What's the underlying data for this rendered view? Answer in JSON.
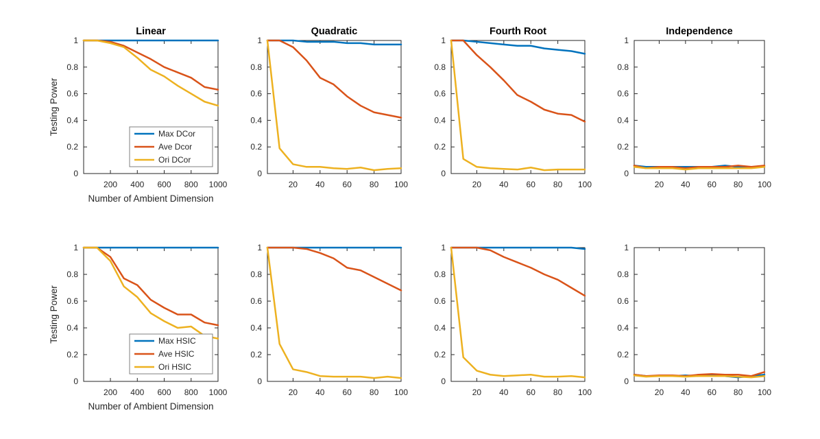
{
  "figure": {
    "background": "#ffffff",
    "axis_color": "#262626",
    "legend_border_color": "#7f7f7f",
    "ylabel": "Testing Power",
    "xlabel": "Number of Ambient Dimension"
  },
  "palette": {
    "blue": "#0072BD",
    "orange": "#D95319",
    "yellow": "#EDB120"
  },
  "chart_data": [
    {
      "type": "line",
      "title": "Linear",
      "row": 0,
      "col": 0,
      "xlabel": "Number of Ambient Dimension",
      "ylabel": "Testing Power",
      "x": [
        1,
        100,
        200,
        300,
        400,
        500,
        600,
        700,
        800,
        900,
        1000
      ],
      "xlim": [
        1,
        1000
      ],
      "x_ticks": [
        200,
        400,
        600,
        800,
        1000
      ],
      "ylim": [
        0,
        1
      ],
      "y_ticks": [
        0,
        0.2,
        0.4,
        0.6,
        0.8,
        1
      ],
      "grid": false,
      "legend": true,
      "legend_location": "inside-lower-right",
      "series": [
        {
          "name": "Max DCor",
          "color": "blue",
          "values": [
            1,
            1,
            1,
            1,
            1,
            1,
            1,
            1,
            1,
            1,
            1
          ]
        },
        {
          "name": "Ave Dcor",
          "color": "orange",
          "values": [
            1,
            1,
            0.99,
            0.96,
            0.91,
            0.86,
            0.8,
            0.76,
            0.72,
            0.65,
            0.63
          ]
        },
        {
          "name": "Ori DCor",
          "color": "yellow",
          "values": [
            1,
            1,
            0.98,
            0.95,
            0.87,
            0.78,
            0.73,
            0.66,
            0.6,
            0.54,
            0.51
          ]
        }
      ]
    },
    {
      "type": "line",
      "title": "Quadratic",
      "row": 0,
      "col": 1,
      "x": [
        1,
        10,
        20,
        30,
        40,
        50,
        60,
        70,
        80,
        90,
        100
      ],
      "xlim": [
        1,
        100
      ],
      "x_ticks": [
        20,
        40,
        60,
        80,
        100
      ],
      "ylim": [
        0,
        1
      ],
      "y_ticks": [
        0,
        0.2,
        0.4,
        0.6,
        0.8,
        1
      ],
      "grid": false,
      "legend": false,
      "series": [
        {
          "name": "Max DCor",
          "color": "blue",
          "values": [
            1,
            1,
            1,
            0.99,
            0.99,
            0.99,
            0.98,
            0.98,
            0.97,
            0.97,
            0.97
          ]
        },
        {
          "name": "Ave Dcor",
          "color": "orange",
          "values": [
            1,
            1,
            0.95,
            0.85,
            0.72,
            0.67,
            0.58,
            0.51,
            0.46,
            0.44,
            0.42
          ]
        },
        {
          "name": "Ori DCor",
          "color": "yellow",
          "values": [
            1,
            0.19,
            0.07,
            0.05,
            0.05,
            0.04,
            0.035,
            0.045,
            0.025,
            0.035,
            0.04
          ]
        }
      ]
    },
    {
      "type": "line",
      "title": "Fourth Root",
      "row": 0,
      "col": 2,
      "x": [
        1,
        10,
        20,
        30,
        40,
        50,
        60,
        70,
        80,
        90,
        100
      ],
      "xlim": [
        1,
        100
      ],
      "x_ticks": [
        20,
        40,
        60,
        80,
        100
      ],
      "ylim": [
        0,
        1
      ],
      "y_ticks": [
        0,
        0.2,
        0.4,
        0.6,
        0.8,
        1
      ],
      "grid": false,
      "legend": false,
      "series": [
        {
          "name": "Max DCor",
          "color": "blue",
          "values": [
            1,
            1,
            0.99,
            0.98,
            0.97,
            0.96,
            0.96,
            0.94,
            0.93,
            0.92,
            0.9
          ]
        },
        {
          "name": "Ave Dcor",
          "color": "orange",
          "values": [
            1,
            1,
            0.89,
            0.8,
            0.7,
            0.59,
            0.54,
            0.48,
            0.45,
            0.44,
            0.39
          ]
        },
        {
          "name": "Ori DCor",
          "color": "yellow",
          "values": [
            1,
            0.11,
            0.05,
            0.04,
            0.035,
            0.03,
            0.045,
            0.025,
            0.03,
            0.03,
            0.03
          ]
        }
      ]
    },
    {
      "type": "line",
      "title": "Independence",
      "row": 0,
      "col": 3,
      "x": [
        1,
        10,
        20,
        30,
        40,
        50,
        60,
        70,
        80,
        90,
        100
      ],
      "xlim": [
        1,
        100
      ],
      "x_ticks": [
        20,
        40,
        60,
        80,
        100
      ],
      "ylim": [
        0,
        1
      ],
      "y_ticks": [
        0,
        0.2,
        0.4,
        0.6,
        0.8,
        1
      ],
      "grid": false,
      "legend": false,
      "series": [
        {
          "name": "Max DCor",
          "color": "blue",
          "values": [
            0.06,
            0.05,
            0.05,
            0.05,
            0.05,
            0.05,
            0.05,
            0.06,
            0.05,
            0.05,
            0.05
          ]
        },
        {
          "name": "Ave Dcor",
          "color": "orange",
          "values": [
            0.06,
            0.04,
            0.05,
            0.05,
            0.04,
            0.05,
            0.05,
            0.05,
            0.06,
            0.05,
            0.06
          ]
        },
        {
          "name": "Ori DCor",
          "color": "yellow",
          "values": [
            0.05,
            0.04,
            0.04,
            0.04,
            0.03,
            0.04,
            0.04,
            0.04,
            0.04,
            0.04,
            0.05
          ]
        }
      ]
    },
    {
      "type": "line",
      "title": "",
      "row": 1,
      "col": 0,
      "xlabel": "Number of Ambient Dimension",
      "ylabel": "Testing Power",
      "x": [
        1,
        100,
        200,
        300,
        400,
        500,
        600,
        700,
        800,
        900,
        1000
      ],
      "xlim": [
        1,
        1000
      ],
      "x_ticks": [
        200,
        400,
        600,
        800,
        1000
      ],
      "ylim": [
        0,
        1
      ],
      "y_ticks": [
        0,
        0.2,
        0.4,
        0.6,
        0.8,
        1
      ],
      "grid": false,
      "legend": true,
      "legend_location": "inside-lower-right",
      "series": [
        {
          "name": "Max HSIC",
          "color": "blue",
          "values": [
            1,
            1,
            1,
            1,
            1,
            1,
            1,
            1,
            1,
            1,
            1
          ]
        },
        {
          "name": "Ave HSIC",
          "color": "orange",
          "values": [
            1,
            1,
            0.93,
            0.77,
            0.72,
            0.61,
            0.55,
            0.5,
            0.5,
            0.44,
            0.42
          ]
        },
        {
          "name": "Ori HSIC",
          "color": "yellow",
          "values": [
            1,
            1,
            0.9,
            0.71,
            0.63,
            0.51,
            0.45,
            0.4,
            0.41,
            0.34,
            0.32
          ]
        }
      ]
    },
    {
      "type": "line",
      "title": "",
      "row": 1,
      "col": 1,
      "x": [
        1,
        10,
        20,
        30,
        40,
        50,
        60,
        70,
        80,
        90,
        100
      ],
      "xlim": [
        1,
        100
      ],
      "x_ticks": [
        20,
        40,
        60,
        80,
        100
      ],
      "ylim": [
        0,
        1
      ],
      "y_ticks": [
        0,
        0.2,
        0.4,
        0.6,
        0.8,
        1
      ],
      "grid": false,
      "legend": false,
      "series": [
        {
          "name": "Max HSIC",
          "color": "blue",
          "values": [
            1,
            1,
            1,
            1,
            1,
            1,
            1,
            1,
            1,
            1,
            1
          ]
        },
        {
          "name": "Ave HSIC",
          "color": "orange",
          "values": [
            1,
            1,
            1,
            0.99,
            0.96,
            0.92,
            0.85,
            0.83,
            0.78,
            0.73,
            0.68
          ]
        },
        {
          "name": "Ori HSIC",
          "color": "yellow",
          "values": [
            1,
            0.28,
            0.09,
            0.07,
            0.04,
            0.035,
            0.035,
            0.035,
            0.025,
            0.035,
            0.025
          ]
        }
      ]
    },
    {
      "type": "line",
      "title": "",
      "row": 1,
      "col": 2,
      "x": [
        1,
        10,
        20,
        30,
        40,
        50,
        60,
        70,
        80,
        90,
        100
      ],
      "xlim": [
        1,
        100
      ],
      "x_ticks": [
        20,
        40,
        60,
        80,
        100
      ],
      "ylim": [
        0,
        1
      ],
      "y_ticks": [
        0,
        0.2,
        0.4,
        0.6,
        0.8,
        1
      ],
      "grid": false,
      "legend": false,
      "series": [
        {
          "name": "Max HSIC",
          "color": "blue",
          "values": [
            1,
            1,
            1,
            1,
            1,
            1,
            1,
            1,
            1,
            1,
            0.99
          ]
        },
        {
          "name": "Ave HSIC",
          "color": "orange",
          "values": [
            1,
            1,
            1,
            0.98,
            0.93,
            0.89,
            0.85,
            0.8,
            0.76,
            0.7,
            0.64
          ]
        },
        {
          "name": "Ori HSIC",
          "color": "yellow",
          "values": [
            1,
            0.18,
            0.08,
            0.05,
            0.04,
            0.045,
            0.05,
            0.035,
            0.035,
            0.04,
            0.03
          ]
        }
      ]
    },
    {
      "type": "line",
      "title": "",
      "row": 1,
      "col": 3,
      "x": [
        1,
        10,
        20,
        30,
        40,
        50,
        60,
        70,
        80,
        90,
        100
      ],
      "xlim": [
        1,
        100
      ],
      "x_ticks": [
        20,
        40,
        60,
        80,
        100
      ],
      "ylim": [
        0,
        1
      ],
      "y_ticks": [
        0,
        0.2,
        0.4,
        0.6,
        0.8,
        1
      ],
      "grid": false,
      "legend": false,
      "series": [
        {
          "name": "Max HSIC",
          "color": "blue",
          "values": [
            0.05,
            0.04,
            0.04,
            0.04,
            0.045,
            0.04,
            0.05,
            0.04,
            0.03,
            0.04,
            0.05
          ]
        },
        {
          "name": "Ave HSIC",
          "color": "orange",
          "values": [
            0.05,
            0.04,
            0.045,
            0.045,
            0.04,
            0.05,
            0.055,
            0.05,
            0.05,
            0.04,
            0.07
          ]
        },
        {
          "name": "Ori HSIC",
          "color": "yellow",
          "values": [
            0.045,
            0.035,
            0.04,
            0.04,
            0.035,
            0.04,
            0.04,
            0.04,
            0.035,
            0.03,
            0.04
          ]
        }
      ]
    }
  ]
}
